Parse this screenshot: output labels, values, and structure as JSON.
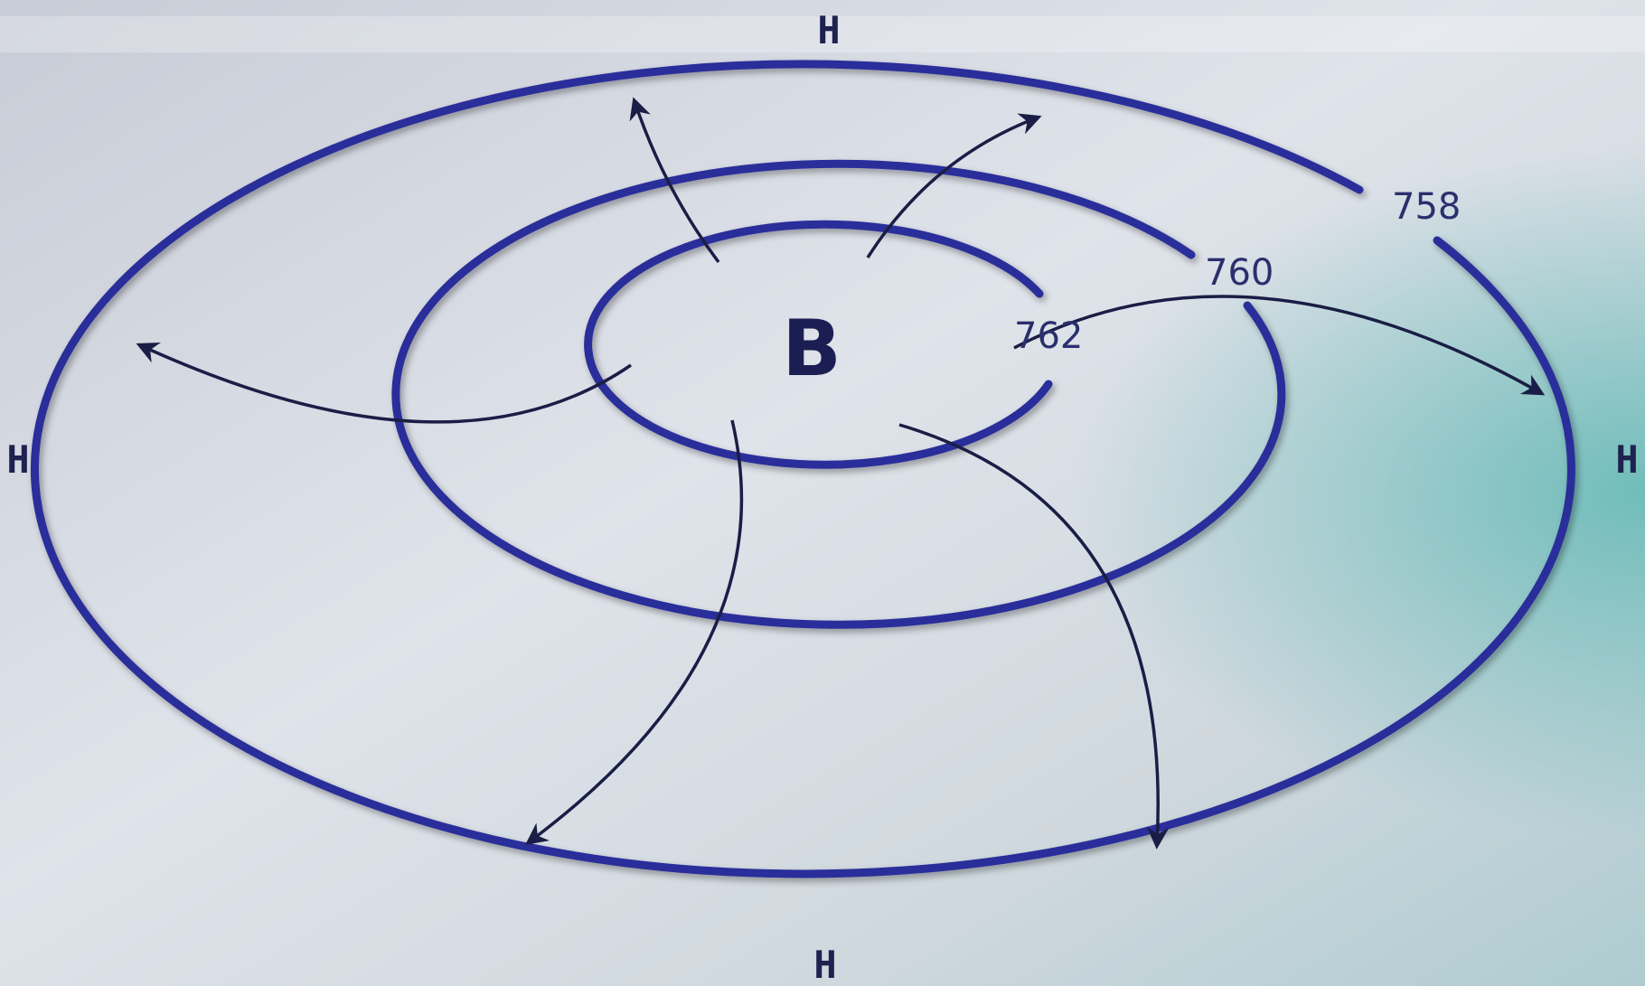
{
  "labels": {
    "center": "B",
    "top": "H",
    "bottom": "H",
    "left": "H",
    "right": "H"
  },
  "isobars": {
    "outer": "758",
    "middle": "760",
    "inner": "762"
  },
  "colors": {
    "isobar": "#2b2f9a",
    "arrow": "#1a1d45",
    "text": "#1e2250"
  }
}
